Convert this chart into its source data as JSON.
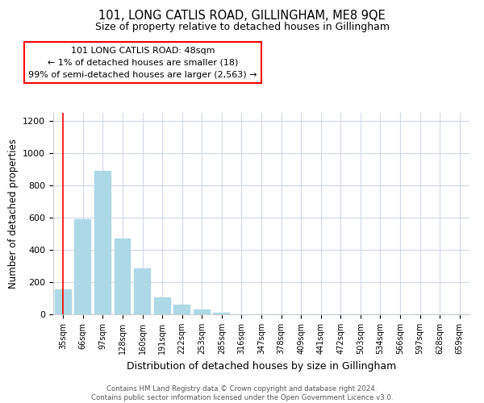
{
  "title": "101, LONG CATLIS ROAD, GILLINGHAM, ME8 9QE",
  "subtitle": "Size of property relative to detached houses in Gillingham",
  "xlabel": "Distribution of detached houses by size in Gillingham",
  "ylabel": "Number of detached properties",
  "bar_labels": [
    "35sqm",
    "66sqm",
    "97sqm",
    "128sqm",
    "160sqm",
    "191sqm",
    "222sqm",
    "253sqm",
    "285sqm",
    "316sqm",
    "347sqm",
    "378sqm",
    "409sqm",
    "441sqm",
    "472sqm",
    "503sqm",
    "534sqm",
    "566sqm",
    "597sqm",
    "628sqm",
    "659sqm"
  ],
  "bar_values": [
    155,
    590,
    890,
    468,
    285,
    105,
    62,
    28,
    12,
    0,
    0,
    0,
    0,
    0,
    0,
    0,
    0,
    0,
    0,
    0,
    0
  ],
  "bar_color": "#add8e6",
  "annotation_box_text": "101 LONG CATLIS ROAD: 48sqm\n← 1% of detached houses are smaller (18)\n99% of semi-detached houses are larger (2,563) →",
  "ylim": [
    0,
    1250
  ],
  "yticks": [
    0,
    200,
    400,
    600,
    800,
    1000,
    1200
  ],
  "footer_line1": "Contains HM Land Registry data © Crown copyright and database right 2024.",
  "footer_line2": "Contains public sector information licensed under the Open Government Licence v3.0.",
  "grid_color": "#d0d8e8",
  "background_color": "#ffffff",
  "annotation_fontsize": 8.0,
  "title_fontsize": 10.5,
  "subtitle_fontsize": 9.0,
  "ylabel_fontsize": 8.5,
  "xlabel_fontsize": 9.0
}
